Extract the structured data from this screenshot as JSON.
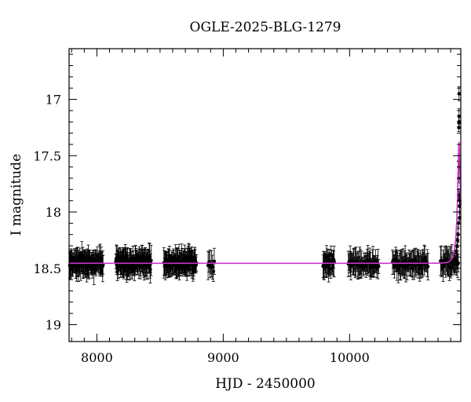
{
  "chart_data": {
    "type": "scatter",
    "title": "OGLE-2025-BLG-1279",
    "xlabel": "HJD - 2450000",
    "ylabel": "I magnitude",
    "xlim": [
      7780,
      10880
    ],
    "ylim": [
      19.15,
      16.55
    ],
    "y_inverted": true,
    "x_ticks": [
      8000,
      9000,
      10000
    ],
    "x_tick_labels": [
      "8000",
      "9000",
      "10000"
    ],
    "y_ticks": [
      17,
      17.5,
      18,
      18.5,
      19
    ],
    "y_tick_labels": [
      "17",
      "17.5",
      "18",
      "18.5",
      "19"
    ],
    "grid": false,
    "legend": "none",
    "colors": {
      "data": "#000000",
      "model": "#cc33cc"
    },
    "baseline_mag": 18.455,
    "seasons": [
      {
        "start": 7785,
        "end": 8050,
        "mean": 18.45,
        "scatter": 0.08,
        "step": 3
      },
      {
        "start": 8150,
        "end": 8430,
        "mean": 18.45,
        "scatter": 0.08,
        "step": 3
      },
      {
        "start": 8530,
        "end": 8790,
        "mean": 18.45,
        "scatter": 0.08,
        "step": 3
      },
      {
        "start": 8880,
        "end": 8935,
        "mean": 18.47,
        "scatter": 0.09,
        "step": 7
      },
      {
        "start": 9790,
        "end": 9880,
        "mean": 18.45,
        "scatter": 0.08,
        "step": 4
      },
      {
        "start": 9990,
        "end": 10230,
        "mean": 18.46,
        "scatter": 0.07,
        "step": 5
      },
      {
        "start": 10340,
        "end": 10620,
        "mean": 18.46,
        "scatter": 0.07,
        "step": 5
      },
      {
        "start": 10720,
        "end": 10860,
        "mean": 18.45,
        "scatter": 0.06,
        "step": 5
      }
    ],
    "event_points": [
      {
        "x": 10845,
        "y": 18.35
      },
      {
        "x": 10850,
        "y": 18.3
      },
      {
        "x": 10855,
        "y": 18.25
      },
      {
        "x": 10858,
        "y": 18.2
      },
      {
        "x": 10861,
        "y": 18.1
      },
      {
        "x": 10862,
        "y": 17.85
      },
      {
        "x": 10863,
        "y": 17.7
      },
      {
        "x": 10864,
        "y": 17.55
      },
      {
        "x": 10864,
        "y": 17.25
      },
      {
        "x": 10865,
        "y": 17.2
      },
      {
        "x": 10866,
        "y": 17.15
      },
      {
        "x": 10866,
        "y": 16.95
      },
      {
        "x": 10867,
        "y": 17.2
      },
      {
        "x": 10868,
        "y": 17.6
      },
      {
        "x": 10869,
        "y": 17.85
      },
      {
        "x": 10870,
        "y": 17.95
      },
      {
        "x": 10871,
        "y": 18.05
      },
      {
        "x": 10872,
        "y": 17.9
      }
    ],
    "model": {
      "baseline": 18.455,
      "t0": 10866,
      "tE": 30,
      "u0": 0.25,
      "blend_fraction": 0.55
    }
  }
}
